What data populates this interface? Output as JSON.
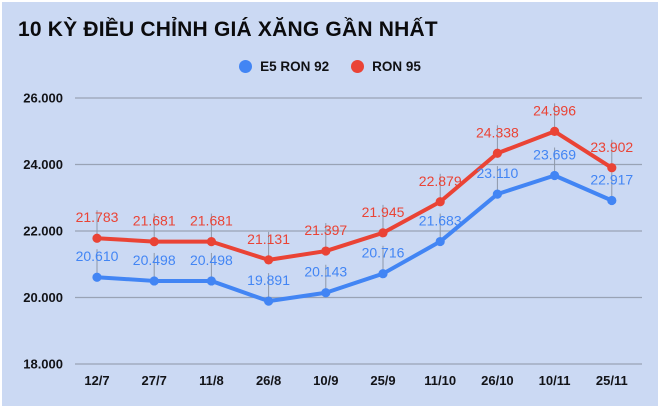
{
  "chart_data": {
    "type": "line",
    "title": "10 KỲ ĐIỀU CHỈNH GIÁ XĂNG GẦN NHẤT",
    "categories": [
      "12/7",
      "27/7",
      "11/8",
      "26/8",
      "10/9",
      "25/9",
      "11/10",
      "26/10",
      "10/11",
      "25/11"
    ],
    "series": [
      {
        "name": "E5 RON 92",
        "color": "#4285f4",
        "values": [
          20610,
          20498,
          20498,
          19891,
          20143,
          20716,
          21683,
          23110,
          23669,
          22917
        ],
        "labels": [
          "20.610",
          "20.498",
          "20.498",
          "19.891",
          "20.143",
          "20.716",
          "21.683",
          "23.110",
          "23.669",
          "22.917"
        ]
      },
      {
        "name": "RON 95",
        "color": "#ea4335",
        "values": [
          21783,
          21681,
          21681,
          21131,
          21397,
          21945,
          22879,
          24338,
          24996,
          23902
        ],
        "labels": [
          "21.783",
          "21.681",
          "21.681",
          "21.131",
          "21.397",
          "21.945",
          "22.879",
          "24.338",
          "24.996",
          "23.902"
        ]
      }
    ],
    "ylim": [
      18000,
      26000
    ],
    "yticks": [
      26000,
      24000,
      22000,
      20000,
      18000
    ],
    "ytick_labels": [
      "26.000",
      "24.000",
      "22.000",
      "20.000",
      "18.000"
    ],
    "xlabel": "",
    "ylabel": "",
    "grid": true,
    "legend_position": "top",
    "point_labels": true
  },
  "colors": {
    "background": "#cbd9f3",
    "grid": "#99a3b5",
    "stem": "#8d97a8",
    "axis_text": "#121317",
    "title_text": "#0b0b0d"
  }
}
